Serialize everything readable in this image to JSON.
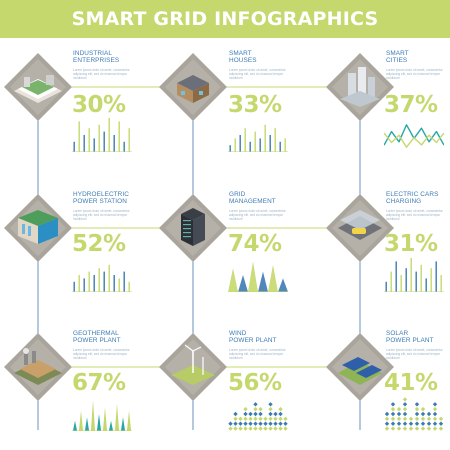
{
  "title": "SMART GRID INFOGRAPHICS",
  "colors": {
    "accent_green": "#c5d86d",
    "accent_blue": "#3d7bb5",
    "teal": "#2aa6a6",
    "diamond_gray": "#a9a49c",
    "line_blue": "#6a93c2"
  },
  "sections": [
    {
      "title": "INDUSTRIAL\nENTERPRISES",
      "description": "Lorem ipsum dolor sit amet, consectetur adipiscing elit, sed do eiusmod tempor incididunt",
      "percent": "30%",
      "icon": "factory-icon",
      "chart": {
        "type": "bar",
        "values": [
          3,
          9,
          5,
          7,
          4,
          8,
          6,
          10,
          5,
          9,
          3,
          7
        ],
        "ylim": [
          0,
          10
        ]
      }
    },
    {
      "title": "SMART\nHOUSES",
      "description": "Lorem ipsum dolor sit amet, consectetur adipiscing elit, sed do eiusmod tempor incididunt",
      "percent": "33%",
      "icon": "houses-icon",
      "chart": {
        "type": "bar",
        "values": [
          2,
          4,
          5,
          7,
          3,
          6,
          4,
          8,
          5,
          7,
          3,
          4
        ],
        "ylim": [
          0,
          10
        ]
      }
    },
    {
      "title": "SMART\nCITIES",
      "description": "Lorem ipsum dolor sit amet, consectetur adipiscing elit, sed do eiusmod tempor incididunt",
      "percent": "37%",
      "icon": "city-icon",
      "chart": {
        "type": "line",
        "values": [
          2,
          6,
          3,
          8,
          4,
          7,
          3,
          6,
          2
        ],
        "ylim": [
          0,
          10
        ]
      }
    },
    {
      "title": "HYDROELECTRIC\nPOWER STATION",
      "description": "Lorem ipsum dolor sit amet, consectetur adipiscing elit, sed do eiusmod tempor incididunt",
      "percent": "52%",
      "icon": "dam-icon",
      "chart": {
        "type": "bar",
        "values": [
          3,
          5,
          4,
          6,
          5,
          7,
          6,
          8,
          5,
          4,
          6,
          3
        ],
        "ylim": [
          0,
          10
        ]
      }
    },
    {
      "title": "GRID\nMANAGEMENT",
      "description": "Lorem ipsum dolor sit amet, consectetur adipiscing elit, sed do eiusmod tempor incididunt",
      "percent": "74%",
      "icon": "server-icon",
      "chart": {
        "type": "mountain",
        "values": [
          4,
          7,
          5,
          9,
          6,
          8,
          4
        ],
        "ylim": [
          0,
          10
        ]
      }
    },
    {
      "title": "ELECTRIC CARS\nCHARGING",
      "description": "Lorem ipsum dolor sit amet, consectetur adipiscing elit, sed do eiusmod tempor incididunt",
      "percent": "31%",
      "icon": "ev-charging-icon",
      "chart": {
        "type": "bar",
        "values": [
          3,
          6,
          9,
          5,
          7,
          10,
          6,
          8,
          4,
          7,
          9,
          5
        ],
        "ylim": [
          0,
          10
        ]
      }
    },
    {
      "title": "GEOTHERMAL\nPOWER PLANT",
      "description": "Lorem ipsum dolor sit amet, consectetur adipiscing elit, sed do eiusmod tempor incididunt",
      "percent": "67%",
      "icon": "geothermal-icon",
      "chart": {
        "type": "spike",
        "values": [
          3,
          6,
          4,
          9,
          5,
          7,
          3,
          8,
          4,
          6
        ],
        "ylim": [
          0,
          10
        ]
      }
    },
    {
      "title": "WIND\nPOWER PLANT",
      "description": "Lorem ipsum dolor sit amet, consectetur adipiscing elit, sed do eiusmod tempor incididunt",
      "percent": "56%",
      "icon": "wind-turbine-icon",
      "chart": {
        "type": "dots",
        "values": [
          2,
          4,
          3,
          5,
          4,
          6,
          5,
          3,
          6,
          4,
          5,
          3
        ],
        "ylim": [
          0,
          7
        ]
      }
    },
    {
      "title": "SOLAR\nPOWER PLANT",
      "description": "Lorem ipsum dolor sit amet, consectetur adipiscing elit, sed do eiusmod tempor incididunt",
      "percent": "41%",
      "icon": "solar-panel-icon",
      "chart": {
        "type": "dots",
        "values": [
          4,
          6,
          5,
          7,
          3,
          6,
          5,
          4,
          6,
          3
        ],
        "ylim": [
          0,
          7
        ]
      }
    }
  ]
}
